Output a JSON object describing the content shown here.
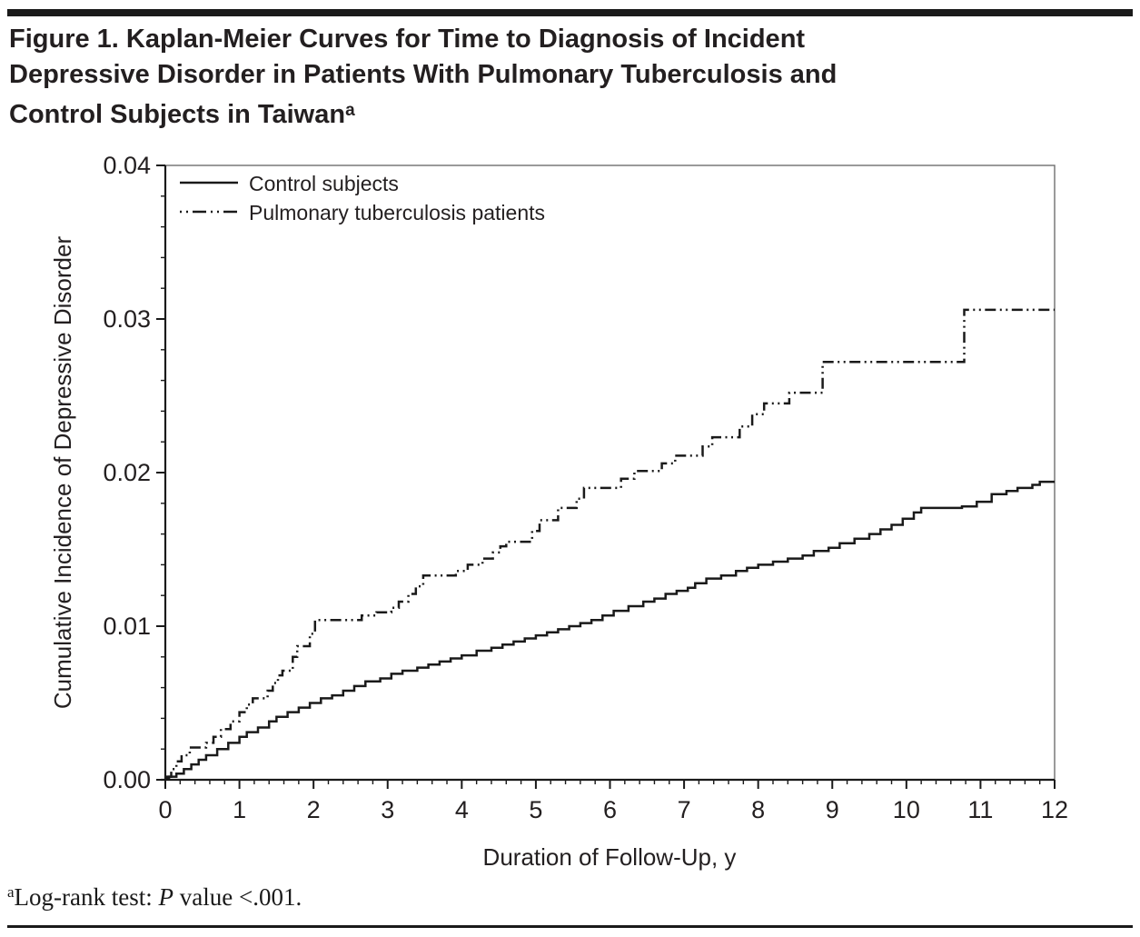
{
  "page": {
    "title": {
      "line1": "Figure 1. Kaplan-Meier Curves for Time to Diagnosis of Incident",
      "line2": "Depressive Disorder in Patients With Pulmonary Tuberculosis and",
      "line3": "Control Subjects in Taiwan",
      "line3_superscript": "a"
    },
    "footnote": {
      "superscript": "a",
      "prefix": "Log-rank test: ",
      "italic_p": "P",
      "suffix": " value <.001."
    }
  },
  "chart_data": {
    "type": "line",
    "subtype": "kaplan-meier-step",
    "title": "",
    "xlabel": "Duration of Follow-Up, y",
    "ylabel": "Cumulative Incidence of Depressive Disorder",
    "xlim": [
      0,
      12
    ],
    "ylim": [
      0,
      0.04
    ],
    "x_ticks": [
      0,
      1,
      2,
      3,
      4,
      5,
      6,
      7,
      8,
      9,
      10,
      11,
      12
    ],
    "y_ticks": [
      0.0,
      0.01,
      0.02,
      0.03,
      0.04
    ],
    "x_minor_step": 0.2,
    "y_minor_step": 0.002,
    "grid": false,
    "legend_position": "top-left-inside",
    "line_color": "#1a1a1a",
    "series": [
      {
        "name": "Control subjects",
        "line_style": "solid",
        "color": "#1a1a1a",
        "points": [
          [
            0,
            0.0001
          ],
          [
            0.05,
            0.0002
          ],
          [
            0.15,
            0.0004
          ],
          [
            0.25,
            0.0007
          ],
          [
            0.35,
            0.001
          ],
          [
            0.45,
            0.0013
          ],
          [
            0.55,
            0.0016
          ],
          [
            0.7,
            0.002
          ],
          [
            0.85,
            0.0024
          ],
          [
            1.0,
            0.0028
          ],
          [
            1.1,
            0.0031
          ],
          [
            1.25,
            0.0034
          ],
          [
            1.4,
            0.0038
          ],
          [
            1.5,
            0.0041
          ],
          [
            1.65,
            0.0044
          ],
          [
            1.8,
            0.0047
          ],
          [
            1.95,
            0.005
          ],
          [
            2.1,
            0.0053
          ],
          [
            2.25,
            0.0055
          ],
          [
            2.4,
            0.0058
          ],
          [
            2.55,
            0.0061
          ],
          [
            2.7,
            0.0064
          ],
          [
            2.9,
            0.0066
          ],
          [
            3.05,
            0.0069
          ],
          [
            3.2,
            0.0071
          ],
          [
            3.4,
            0.0073
          ],
          [
            3.55,
            0.0075
          ],
          [
            3.7,
            0.0077
          ],
          [
            3.85,
            0.0079
          ],
          [
            4.0,
            0.0081
          ],
          [
            4.2,
            0.0084
          ],
          [
            4.4,
            0.0086
          ],
          [
            4.55,
            0.0088
          ],
          [
            4.7,
            0.009
          ],
          [
            4.85,
            0.0092
          ],
          [
            5.0,
            0.0094
          ],
          [
            5.15,
            0.0096
          ],
          [
            5.3,
            0.0098
          ],
          [
            5.45,
            0.01
          ],
          [
            5.6,
            0.0102
          ],
          [
            5.75,
            0.0104
          ],
          [
            5.9,
            0.0107
          ],
          [
            6.05,
            0.011
          ],
          [
            6.25,
            0.0113
          ],
          [
            6.45,
            0.0116
          ],
          [
            6.6,
            0.0118
          ],
          [
            6.75,
            0.0121
          ],
          [
            6.9,
            0.0123
          ],
          [
            7.05,
            0.0125
          ],
          [
            7.15,
            0.0128
          ],
          [
            7.3,
            0.0131
          ],
          [
            7.5,
            0.0133
          ],
          [
            7.7,
            0.0136
          ],
          [
            7.85,
            0.0138
          ],
          [
            8.0,
            0.014
          ],
          [
            8.2,
            0.0142
          ],
          [
            8.4,
            0.0144
          ],
          [
            8.6,
            0.0146
          ],
          [
            8.75,
            0.0149
          ],
          [
            8.95,
            0.0151
          ],
          [
            9.1,
            0.0154
          ],
          [
            9.3,
            0.0157
          ],
          [
            9.5,
            0.016
          ],
          [
            9.65,
            0.0163
          ],
          [
            9.8,
            0.0166
          ],
          [
            9.95,
            0.017
          ],
          [
            10.1,
            0.0174
          ],
          [
            10.2,
            0.0177
          ],
          [
            10.75,
            0.0178
          ],
          [
            10.95,
            0.0181
          ],
          [
            11.15,
            0.0186
          ],
          [
            11.35,
            0.0188
          ],
          [
            11.5,
            0.019
          ],
          [
            11.7,
            0.0192
          ],
          [
            11.8,
            0.0194
          ]
        ]
      },
      {
        "name": "Pulmonary tuberculosis patients",
        "line_style": "dash-dot-dot",
        "color": "#1a1a1a",
        "points": [
          [
            0,
            0.0002
          ],
          [
            0.08,
            0.0007
          ],
          [
            0.15,
            0.0012
          ],
          [
            0.22,
            0.0016
          ],
          [
            0.33,
            0.0021
          ],
          [
            0.55,
            0.0024
          ],
          [
            0.65,
            0.0028
          ],
          [
            0.75,
            0.0033
          ],
          [
            0.88,
            0.0038
          ],
          [
            1.0,
            0.0044
          ],
          [
            1.1,
            0.0049
          ],
          [
            1.18,
            0.0053
          ],
          [
            1.38,
            0.0058
          ],
          [
            1.45,
            0.0063
          ],
          [
            1.52,
            0.0068
          ],
          [
            1.58,
            0.0071
          ],
          [
            1.72,
            0.008
          ],
          [
            1.78,
            0.0087
          ],
          [
            1.95,
            0.0095
          ],
          [
            2.02,
            0.0104
          ],
          [
            2.65,
            0.0107
          ],
          [
            2.85,
            0.0109
          ],
          [
            3.05,
            0.0112
          ],
          [
            3.15,
            0.0116
          ],
          [
            3.28,
            0.0121
          ],
          [
            3.38,
            0.0126
          ],
          [
            3.48,
            0.0133
          ],
          [
            3.92,
            0.0136
          ],
          [
            4.08,
            0.014
          ],
          [
            4.28,
            0.0144
          ],
          [
            4.42,
            0.0148
          ],
          [
            4.52,
            0.0152
          ],
          [
            4.6,
            0.0155
          ],
          [
            4.95,
            0.0162
          ],
          [
            5.05,
            0.0169
          ],
          [
            5.3,
            0.0177
          ],
          [
            5.55,
            0.0183
          ],
          [
            5.65,
            0.019
          ],
          [
            6.15,
            0.0196
          ],
          [
            6.33,
            0.0201
          ],
          [
            6.7,
            0.0206
          ],
          [
            6.88,
            0.0211
          ],
          [
            7.25,
            0.0217
          ],
          [
            7.38,
            0.0223
          ],
          [
            7.75,
            0.023
          ],
          [
            7.92,
            0.0238
          ],
          [
            8.08,
            0.0245
          ],
          [
            8.42,
            0.0252
          ],
          [
            8.87,
            0.0272
          ],
          [
            10.78,
            0.0306
          ]
        ]
      }
    ]
  }
}
